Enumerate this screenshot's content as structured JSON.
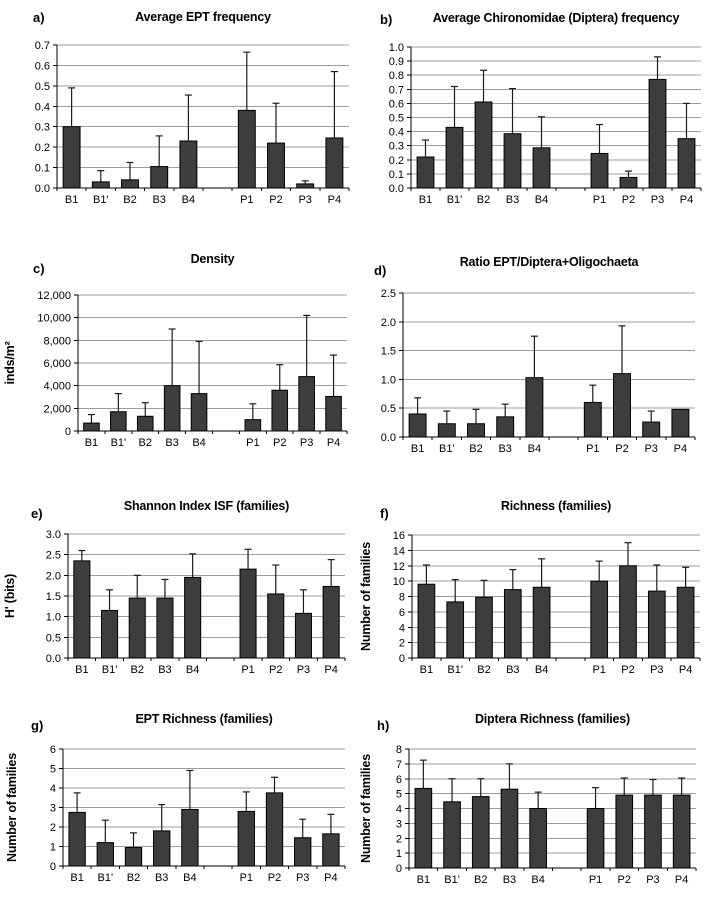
{
  "figure": {
    "background": "#ffffff",
    "bar_color": "#3d3d3d",
    "bar_border_color": "#000000",
    "grid_color": "#9c9c9c",
    "axis_color": "#000000",
    "error_color": "#1c1c1c",
    "text_color": "#000000"
  },
  "chart_data": [
    {
      "id": "a",
      "type": "bar",
      "panel_label": "a)",
      "title": "Average EPT frequency",
      "ylabel": "",
      "xlabel": "",
      "ylim": [
        0,
        0.7
      ],
      "ytick_step": 0.1,
      "ytick_decimals": 1,
      "ytick_format": "decimal",
      "grid": true,
      "legend": false,
      "categories": [
        "B1",
        "B1'",
        "B2",
        "B3",
        "B4",
        "",
        "P1",
        "P2",
        "P3",
        "P4"
      ],
      "values": [
        0.3,
        0.03,
        0.04,
        0.105,
        0.23,
        null,
        0.38,
        0.22,
        0.02,
        0.245
      ],
      "errors_upper": [
        0.19,
        0.055,
        0.085,
        0.15,
        0.225,
        null,
        0.285,
        0.195,
        0.015,
        0.325
      ]
    },
    {
      "id": "b",
      "type": "bar",
      "panel_label": "b)",
      "title": "Average Chironomidae (Diptera) frequency",
      "ylabel": "",
      "xlabel": "",
      "ylim": [
        0,
        1.0
      ],
      "ytick_step": 0.1,
      "ytick_decimals": 1,
      "ytick_format": "decimal",
      "grid": true,
      "legend": false,
      "categories": [
        "B1",
        "B1'",
        "B2",
        "B3",
        "B4",
        "",
        "P1",
        "P2",
        "P3",
        "P4"
      ],
      "values": [
        0.22,
        0.43,
        0.61,
        0.385,
        0.285,
        null,
        0.245,
        0.075,
        0.77,
        0.35
      ],
      "errors_upper": [
        0.12,
        0.29,
        0.225,
        0.32,
        0.22,
        null,
        0.205,
        0.045,
        0.16,
        0.25
      ]
    },
    {
      "id": "c",
      "type": "bar",
      "panel_label": "c)",
      "title": "Density",
      "ylabel": "inds/m²",
      "xlabel": "",
      "ylim": [
        0,
        12000
      ],
      "ytick_step": 2000,
      "ytick_decimals": 0,
      "ytick_format": "comma",
      "grid": true,
      "legend": false,
      "categories": [
        "B1",
        "B1'",
        "B2",
        "B3",
        "B4",
        "",
        "P1",
        "P2",
        "P3",
        "P4"
      ],
      "values": [
        700,
        1700,
        1300,
        4000,
        3300,
        null,
        1000,
        3600,
        4800,
        3050
      ],
      "errors_upper": [
        750,
        1600,
        1200,
        5000,
        4600,
        null,
        1400,
        2250,
        5400,
        3650
      ]
    },
    {
      "id": "d",
      "type": "bar",
      "panel_label": "d)",
      "title": "Ratio EPT/Diptera+Oligochaeta",
      "ylabel": "",
      "xlabel": "",
      "ylim": [
        0,
        2.5
      ],
      "ytick_step": 0.5,
      "ytick_decimals": 1,
      "ytick_format": "decimal",
      "grid": true,
      "legend": false,
      "categories": [
        "B1",
        "B1'",
        "B2",
        "B3",
        "B4",
        "",
        "P1",
        "P2",
        "P3",
        "P4"
      ],
      "values": [
        0.4,
        0.23,
        0.23,
        0.35,
        1.03,
        null,
        0.6,
        1.1,
        0.26,
        0.48
      ],
      "errors_upper": [
        0.28,
        0.22,
        0.25,
        0.22,
        0.72,
        null,
        0.3,
        0.83,
        0.19,
        0
      ]
    },
    {
      "id": "e",
      "type": "bar",
      "panel_label": "e)",
      "title": "Shannon Index ISF (families)",
      "ylabel": "H' (bits)",
      "xlabel": "",
      "ylim": [
        0,
        3.0
      ],
      "ytick_step": 0.5,
      "ytick_decimals": 1,
      "ytick_format": "decimal",
      "grid": true,
      "legend": false,
      "categories": [
        "B1",
        "B1'",
        "B2",
        "B3",
        "B4",
        "",
        "P1",
        "P2",
        "P3",
        "P4"
      ],
      "values": [
        2.35,
        1.15,
        1.45,
        1.45,
        1.95,
        null,
        2.15,
        1.55,
        1.08,
        1.73
      ],
      "errors_upper": [
        0.25,
        0.5,
        0.55,
        0.45,
        0.57,
        null,
        0.48,
        0.7,
        0.57,
        0.65
      ]
    },
    {
      "id": "f",
      "type": "bar",
      "panel_label": "f)",
      "title": "Richness (families)",
      "ylabel": "Number of families",
      "xlabel": "",
      "ylim": [
        0,
        16
      ],
      "ytick_step": 2,
      "ytick_decimals": 0,
      "ytick_format": "integer",
      "grid": true,
      "legend": false,
      "categories": [
        "B1",
        "B1'",
        "B2",
        "B3",
        "B4",
        "",
        "P1",
        "P2",
        "P3",
        "P4"
      ],
      "values": [
        9.6,
        7.3,
        7.9,
        8.9,
        9.2,
        null,
        10.0,
        12.0,
        8.7,
        9.2
      ],
      "errors_upper": [
        2.5,
        2.9,
        2.2,
        2.6,
        3.7,
        null,
        2.6,
        3.0,
        3.4,
        2.6
      ]
    },
    {
      "id": "g",
      "type": "bar",
      "panel_label": "g)",
      "title": "EPT Richness (families)",
      "ylabel": "Number of families",
      "xlabel": "",
      "ylim": [
        0,
        6
      ],
      "ytick_step": 1,
      "ytick_decimals": 0,
      "ytick_format": "integer",
      "grid": true,
      "legend": false,
      "categories": [
        "B1",
        "B1'",
        "B2",
        "B3",
        "B4",
        "",
        "P1",
        "P2",
        "P3",
        "P4"
      ],
      "values": [
        2.75,
        1.2,
        0.95,
        1.8,
        2.9,
        null,
        2.8,
        3.75,
        1.45,
        1.65
      ],
      "errors_upper": [
        1.0,
        1.15,
        0.75,
        1.35,
        2.0,
        null,
        1.0,
        0.8,
        0.95,
        1.0
      ]
    },
    {
      "id": "h",
      "type": "bar",
      "panel_label": "h)",
      "title": "Diptera Richness (families)",
      "ylabel": "Number of families",
      "xlabel": "",
      "ylim": [
        0,
        8
      ],
      "ytick_step": 1,
      "ytick_decimals": 0,
      "ytick_format": "integer",
      "grid": true,
      "legend": false,
      "categories": [
        "B1",
        "B1'",
        "B2",
        "B3",
        "B4",
        "",
        "P1",
        "P2",
        "P3",
        "P4"
      ],
      "values": [
        5.35,
        4.45,
        4.8,
        5.3,
        4.0,
        null,
        4.0,
        4.9,
        4.9,
        4.9
      ],
      "errors_upper": [
        1.9,
        1.55,
        1.2,
        1.7,
        1.1,
        null,
        1.4,
        1.15,
        1.05,
        1.15
      ]
    }
  ]
}
